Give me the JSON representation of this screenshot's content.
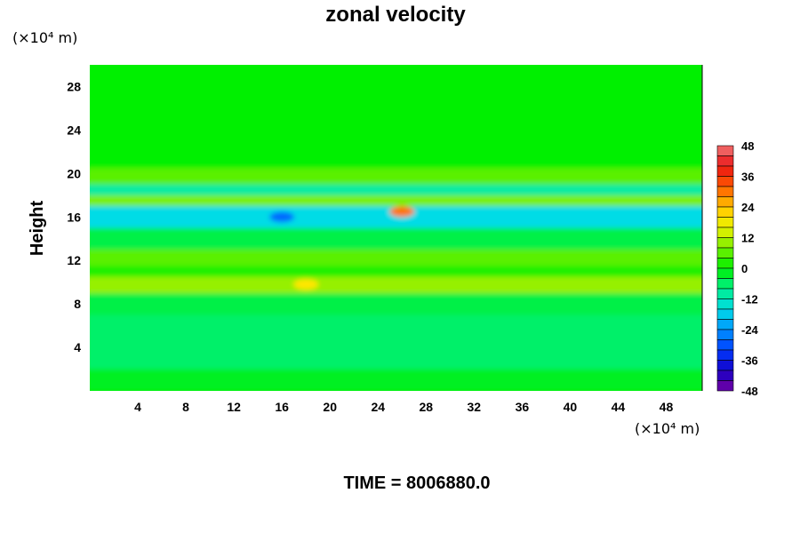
{
  "chart_data": {
    "type": "heatmap",
    "title": "zonal velocity",
    "ylabel": "Height",
    "xlabel": "",
    "x_unit": "(×10⁴ m)",
    "y_unit": "(×10⁴ m)",
    "xlim": [
      0,
      51
    ],
    "ylim": [
      0,
      30
    ],
    "x_ticks": [
      4,
      8,
      12,
      16,
      20,
      24,
      28,
      32,
      36,
      40,
      44,
      48
    ],
    "y_ticks": [
      4,
      8,
      12,
      16,
      20,
      24,
      28
    ],
    "colorbar": {
      "min": -48,
      "max": 48,
      "step": 4,
      "tick_labels": [
        48,
        36,
        24,
        12,
        0,
        -12,
        -24,
        -36,
        -48
      ]
    },
    "bands": [
      {
        "y": [
          0,
          2
        ],
        "value": -2
      },
      {
        "y": [
          2,
          7
        ],
        "value": -6
      },
      {
        "y": [
          7,
          9
        ],
        "value": -4
      },
      {
        "y": [
          9,
          10.5
        ],
        "value": 10
      },
      {
        "y": [
          10.5,
          11.5
        ],
        "value": 2
      },
      {
        "y": [
          11.5,
          13
        ],
        "value": 6
      },
      {
        "y": [
          13,
          15
        ],
        "value": -4
      },
      {
        "y": [
          15,
          17
        ],
        "value": -16
      },
      {
        "y": [
          17,
          18
        ],
        "value": 8
      },
      {
        "y": [
          18,
          19
        ],
        "value": -10
      },
      {
        "y": [
          19,
          20.5
        ],
        "value": 6
      },
      {
        "y": [
          20.5,
          30
        ],
        "value": 0
      }
    ],
    "features": [
      {
        "x": 26,
        "y": 16.5,
        "value": 30
      },
      {
        "x": 16,
        "y": 16,
        "value": -28
      },
      {
        "x": 18,
        "y": 9.8,
        "value": 20
      }
    ],
    "footer": "TIME = 8006880.0"
  }
}
